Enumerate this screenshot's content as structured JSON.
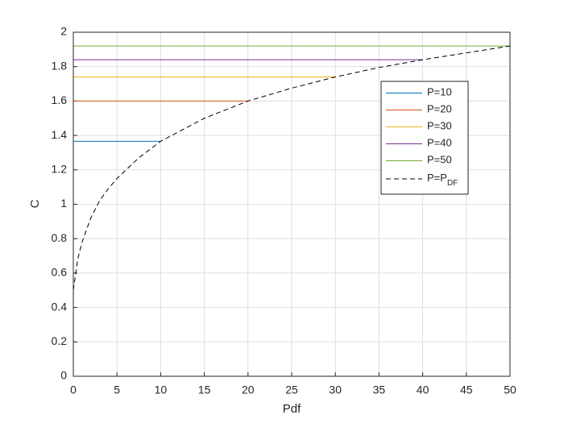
{
  "chart_data": {
    "type": "line",
    "xlabel": "Pdf",
    "ylabel": "C",
    "xlim": [
      0,
      50
    ],
    "ylim": [
      0,
      2
    ],
    "xticks": [
      0,
      5,
      10,
      15,
      20,
      25,
      30,
      35,
      40,
      45,
      50
    ],
    "yticks": [
      0,
      0.2,
      0.4,
      0.6,
      0.8,
      1,
      1.2,
      1.4,
      1.6,
      1.8,
      2
    ],
    "grid": true,
    "legend": "northeast",
    "series": [
      {
        "name": "P=10",
        "color": "#0072bd",
        "dash": false,
        "x": [
          0,
          10
        ],
        "values": [
          1.366,
          1.366
        ]
      },
      {
        "name": "P=20",
        "color": "#d95319",
        "dash": false,
        "x": [
          0,
          20
        ],
        "values": [
          1.6,
          1.6
        ]
      },
      {
        "name": "P=30",
        "color": "#edb120",
        "dash": false,
        "x": [
          0,
          30
        ],
        "values": [
          1.74,
          1.74
        ]
      },
      {
        "name": "P=40",
        "color": "#7e2f8e",
        "dash": false,
        "x": [
          0,
          40
        ],
        "values": [
          1.84,
          1.84
        ]
      },
      {
        "name": "P=50",
        "color": "#77ac30",
        "dash": false,
        "x": [
          0,
          50
        ],
        "values": [
          1.92,
          1.92
        ]
      },
      {
        "name": "P=P",
        "name_sub": "DF",
        "color": "#000000",
        "dash": true,
        "x": [
          0,
          0.5,
          1,
          2,
          3,
          4,
          5,
          7.5,
          10,
          15,
          20,
          25,
          30,
          35,
          40,
          45,
          50
        ],
        "values": [
          0.5,
          0.68,
          0.78,
          0.92,
          1.02,
          1.09,
          1.15,
          1.27,
          1.366,
          1.5,
          1.6,
          1.675,
          1.74,
          1.795,
          1.84,
          1.88,
          1.92
        ]
      }
    ]
  }
}
